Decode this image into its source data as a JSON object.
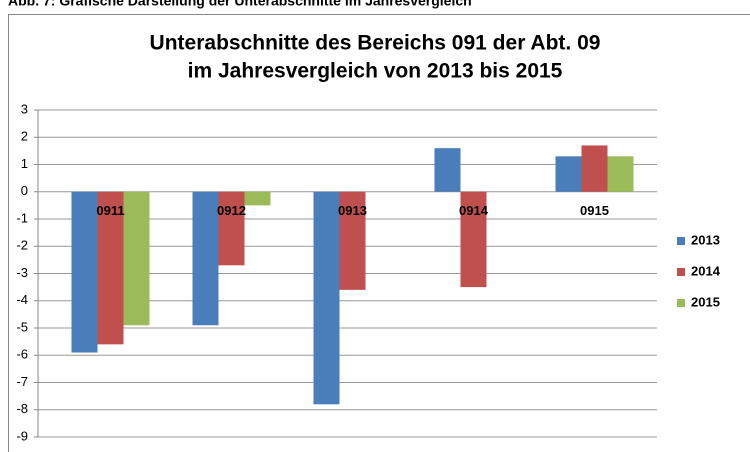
{
  "caption": "Abb. 7: Grafische Darstellung der Unterabschnitte im Jahresvergleich",
  "chart_data": {
    "type": "bar",
    "title": [
      "Unterabschnitte des Bereichs 091 der Abt. 09",
      "im Jahresvergleich von 2013 bis 2015"
    ],
    "categories": [
      "0911",
      "0912",
      "0913",
      "0914",
      "0915"
    ],
    "series": [
      {
        "name": "2013",
        "color": "#4a7ebb",
        "values": [
          -5.9,
          -4.9,
          -7.8,
          1.6,
          1.3
        ]
      },
      {
        "name": "2014",
        "color": "#c0504d",
        "values": [
          -5.6,
          -2.7,
          -3.6,
          -3.5,
          1.7
        ]
      },
      {
        "name": "2015",
        "color": "#9bbb59",
        "values": [
          -4.9,
          -0.5,
          null,
          null,
          1.3
        ]
      }
    ],
    "ylim": [
      -9,
      3
    ],
    "yticks": [
      3,
      2,
      1,
      0,
      -1,
      -2,
      -3,
      -4,
      -5,
      -6,
      -7,
      -8,
      -9
    ],
    "grid": true,
    "legend": "right"
  }
}
